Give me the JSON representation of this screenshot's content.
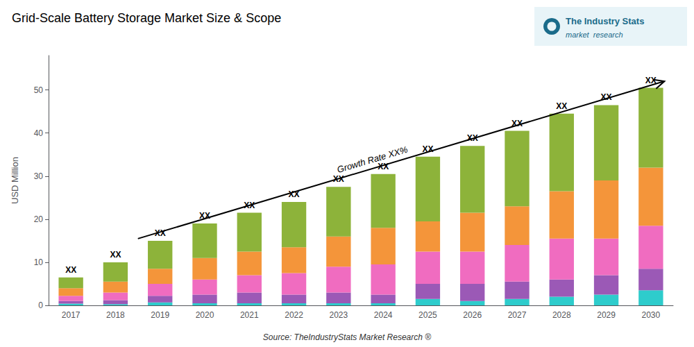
{
  "chart_data": {
    "type": "bar",
    "title": "Grid-Scale Battery Storage Market Size & Scope",
    "ylabel": "USD Million",
    "annotations": [
      "Growth Rate XX%",
      "Source: TheIndustryStats Market Research ®",
      "The Industry Stats",
      "market  research"
    ],
    "categories": [
      2017,
      2018,
      2019,
      2020,
      2021,
      2022,
      2023,
      2024,
      2025,
      2026,
      2027,
      2028,
      2029,
      2030
    ],
    "stacked": true,
    "series": [
      {
        "color": "#2ecccc",
        "values": [
          0.4,
          0.3,
          0.7,
          0.5,
          0.5,
          0.5,
          0.5,
          0.5,
          1.5,
          1.0,
          1.5,
          2.0,
          2.5,
          3.5
        ]
      },
      {
        "color": "#9b59b6",
        "values": [
          0.6,
          0.9,
          1.5,
          2.0,
          2.5,
          2.0,
          2.5,
          2.0,
          3.5,
          4.0,
          4.0,
          4.0,
          4.5,
          5.0
        ]
      },
      {
        "color": "#f06cc0",
        "values": [
          1.2,
          1.8,
          2.8,
          3.5,
          4.0,
          5.0,
          6.0,
          7.0,
          7.5,
          7.5,
          8.5,
          9.5,
          8.5,
          10.0
        ]
      },
      {
        "color": "#f4953a",
        "values": [
          1.8,
          2.5,
          3.5,
          5.0,
          5.5,
          6.0,
          7.0,
          8.5,
          7.0,
          9.0,
          9.0,
          11.0,
          13.5,
          13.5
        ]
      },
      {
        "color": "#8db33a",
        "values": [
          2.5,
          4.5,
          6.5,
          8.0,
          9.0,
          10.5,
          11.5,
          12.5,
          15.0,
          15.5,
          17.5,
          18.0,
          17.5,
          18.5
        ],
        "value_labels": [
          "XX",
          "XX",
          "XX",
          "XX",
          "XX",
          "XX",
          "XX",
          "XX",
          "XX",
          "XX",
          "XX",
          "XX",
          "XX",
          "XX"
        ]
      }
    ],
    "ylim": [
      0,
      58
    ],
    "yticks": [
      0,
      10,
      20,
      30,
      40,
      50
    ],
    "grid": false
  }
}
